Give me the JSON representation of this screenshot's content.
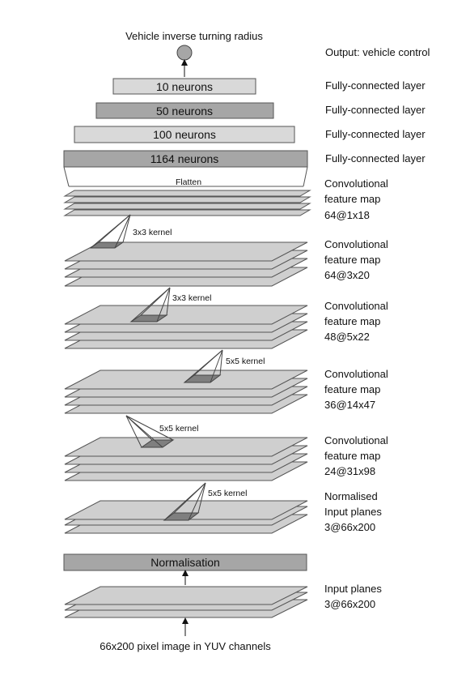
{
  "top_label": "Vehicle inverse turning radius",
  "output_label": "Output: vehicle control",
  "fc_layers": [
    {
      "label": "10 neurons",
      "side": "Fully-connected layer",
      "fill": "#d9d9d9"
    },
    {
      "label": "50 neurons",
      "side": "Fully-connected layer",
      "fill": "#a6a6a6"
    },
    {
      "label": "100 neurons",
      "side": "Fully-connected layer",
      "fill": "#d9d9d9"
    },
    {
      "label": "1164 neurons",
      "side": "Fully-connected layer",
      "fill": "#a6a6a6"
    }
  ],
  "flatten_label": "Flatten",
  "conv_maps": [
    {
      "line1": "Convolutional",
      "line2": "feature map",
      "line3": "64@1x18"
    },
    {
      "line1": "Convolutional",
      "line2": "feature map",
      "line3": "64@3x20"
    },
    {
      "line1": "Convolutional",
      "line2": "feature map",
      "line3": "48@5x22"
    },
    {
      "line1": "Convolutional",
      "line2": "feature map",
      "line3": "36@14x47"
    },
    {
      "line1": "Convolutional",
      "line2": "feature map",
      "line3": "24@31x98"
    }
  ],
  "kernels": [
    "3x3 kernel",
    "3x3 kernel",
    "5x5 kernel",
    "5x5 kernel",
    "5x5 kernel"
  ],
  "normalised": {
    "line1": "Normalised",
    "line2": "Input planes",
    "line3": "3@66x200"
  },
  "normalisation_label": "Normalisation",
  "input": {
    "line1": "Input planes",
    "line2": "3@66x200"
  },
  "bottom_label": "66x200 pixel image in YUV channels",
  "colors": {
    "plane_fill": "#cfcfcf",
    "dark_fill": "#a6a6a6",
    "light_fill": "#d9d9d9",
    "kernel_fill": "#7f7f7f",
    "stroke": "#555555"
  }
}
